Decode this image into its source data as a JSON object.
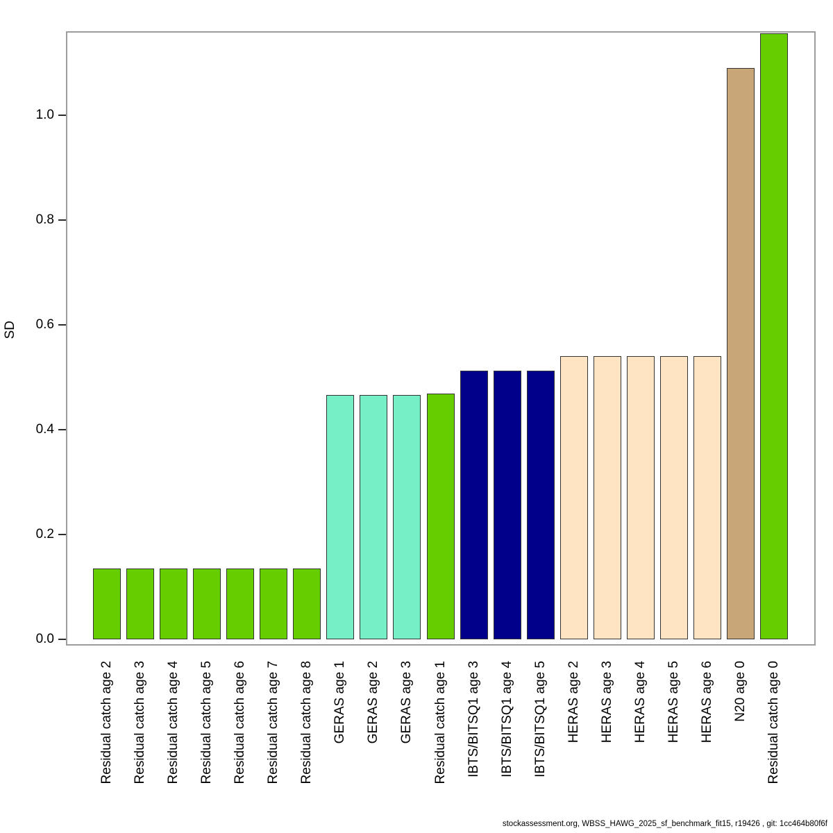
{
  "chart_data": {
    "type": "bar",
    "title": "",
    "xlabel": "",
    "ylabel": "SD",
    "ylim": [
      0,
      1.16
    ],
    "yticks": [
      0.0,
      0.2,
      0.4,
      0.6,
      0.8,
      1.0
    ],
    "grid": false,
    "legend": false,
    "categories": [
      "Residual catch age 2",
      "Residual catch age 3",
      "Residual catch age 4",
      "Residual catch age 5",
      "Residual catch age 6",
      "Residual catch age 7",
      "Residual catch age 8",
      "GERAS age 1",
      "GERAS age 2",
      "GERAS age 3",
      "Residual catch age 1",
      "IBTS/BITSQ1 age 3",
      "IBTS/BITSQ1 age 4",
      "IBTS/BITSQ1 age 5",
      "HERAS age 2",
      "HERAS age 3",
      "HERAS age 4",
      "HERAS age 5",
      "HERAS age 6",
      "N20 age 0",
      "Residual catch age 0"
    ],
    "values": [
      0.135,
      0.135,
      0.135,
      0.135,
      0.135,
      0.135,
      0.135,
      0.466,
      0.466,
      0.466,
      0.469,
      0.513,
      0.513,
      0.513,
      0.54,
      0.54,
      0.54,
      0.54,
      0.54,
      1.09,
      1.156
    ],
    "bar_colors": [
      "#66CD00",
      "#66CD00",
      "#66CD00",
      "#66CD00",
      "#66CD00",
      "#66CD00",
      "#66CD00",
      "#76EEC6",
      "#76EEC6",
      "#76EEC6",
      "#66CD00",
      "#00008B",
      "#00008B",
      "#00008B",
      "#FFE4C4",
      "#FFE4C4",
      "#FFE4C4",
      "#FFE4C4",
      "#FFE4C4",
      "#C9A678",
      "#66CD00"
    ],
    "color_groups": {
      "Residual catch": "#66CD00",
      "GERAS": "#76EEC6",
      "IBTS/BITSQ1": "#00008B",
      "HERAS": "#FFE4C4",
      "N20": "#C9A678"
    }
  },
  "footer": {
    "text": "stockassessment.org, WBSS_HAWG_2025_sf_benchmark_fit15, r19426 , git: 1cc464b80f6f"
  }
}
